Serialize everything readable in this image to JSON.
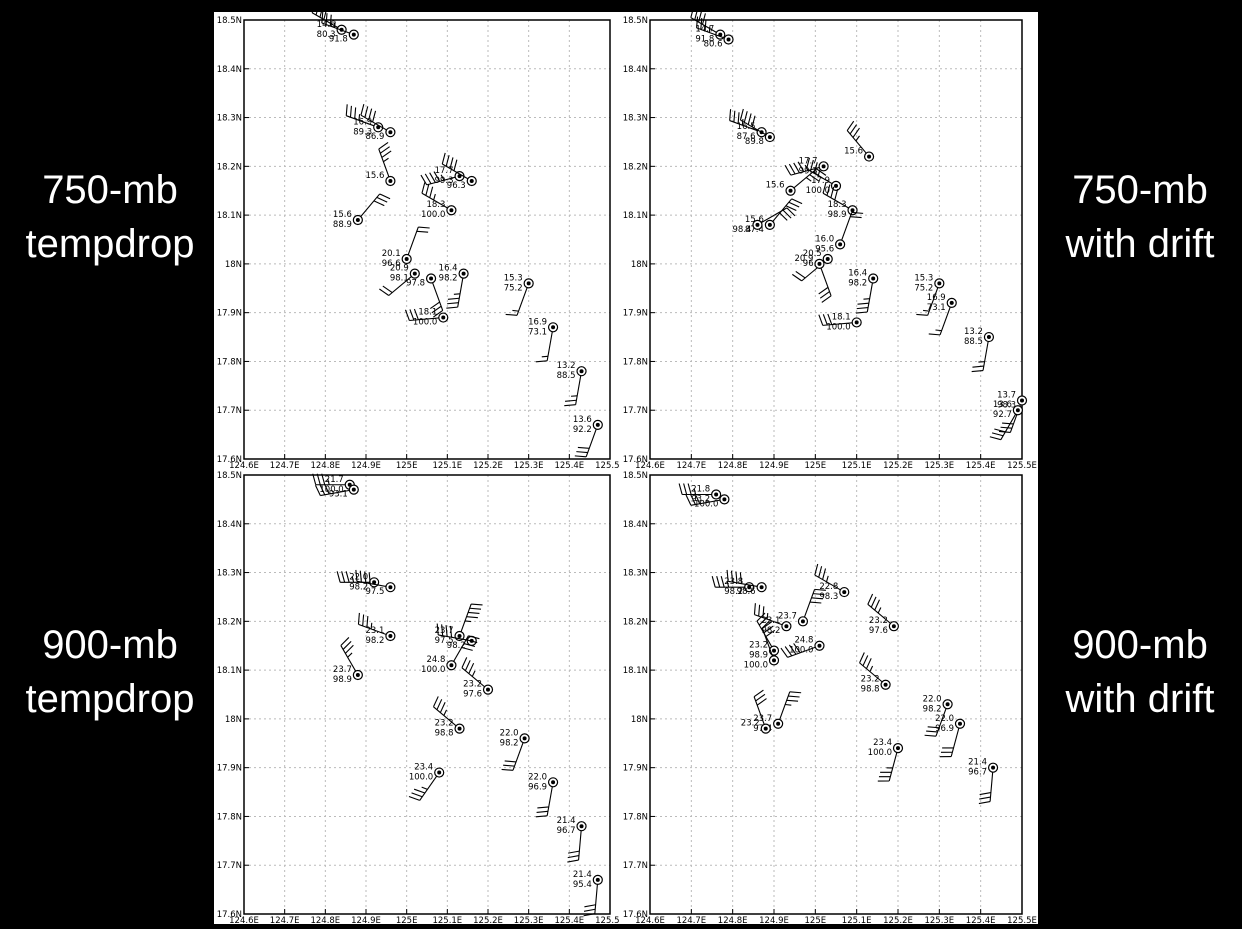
{
  "side_labels": {
    "top_left": [
      "750-mb",
      "tempdrop"
    ],
    "top_right": [
      "750-mb",
      "with drift"
    ],
    "bottom_left": [
      "900-mb",
      "tempdrop"
    ],
    "bottom_right": [
      "900-mb",
      "with drift"
    ]
  },
  "colors": {
    "background": "#000000",
    "panel": "#ffffff",
    "ink": "#000000",
    "grid": "#bbbbbb"
  },
  "chart_data": [
    {
      "type": "scatter",
      "title": "",
      "xlim": [
        124.6,
        125.5
      ],
      "ylim": [
        17.6,
        18.5
      ],
      "x_ticks": [
        "124.6E",
        "124.7E",
        "124.8E",
        "124.9E",
        "125E",
        "125.1E",
        "125.2E",
        "125.3E",
        "125.4E",
        "125.5E"
      ],
      "y_ticks": [
        "17.6N",
        "17.7N",
        "17.8N",
        "17.9N",
        "18N",
        "18.1N",
        "18.2N",
        "18.3N",
        "18.4N",
        "18.5N"
      ],
      "grid": true,
      "stations": [
        {
          "lon": 124.84,
          "lat": 18.48,
          "t": "14.6",
          "rh": "80.3",
          "wd": 300,
          "ws": 40
        },
        {
          "lon": 124.87,
          "lat": 18.47,
          "t": "",
          "rh": "91.8",
          "wd": 290,
          "ws": 35
        },
        {
          "lon": 124.93,
          "lat": 18.28,
          "t": "16.9",
          "rh": "89.3",
          "wd": 290,
          "ws": 35
        },
        {
          "lon": 124.96,
          "lat": 18.27,
          "t": "",
          "rh": "86.9",
          "wd": 300,
          "ws": 40
        },
        {
          "lon": 125.13,
          "lat": 18.18,
          "t": "17.7",
          "rh": "99.3",
          "wd": 255,
          "ws": 45
        },
        {
          "lon": 125.16,
          "lat": 18.17,
          "t": "",
          "rh": "96.3",
          "wd": 300,
          "ws": 40
        },
        {
          "lon": 124.96,
          "lat": 18.17,
          "t": "15.6",
          "rh": "",
          "wd": 340,
          "ws": 35
        },
        {
          "lon": 125.11,
          "lat": 18.11,
          "t": "18.3",
          "rh": "100.0",
          "wd": 300,
          "ws": 35
        },
        {
          "lon": 124.88,
          "lat": 18.09,
          "t": "15.6",
          "rh": "88.9",
          "wd": 40,
          "ws": 30
        },
        {
          "lon": 125.0,
          "lat": 18.01,
          "t": "20.1",
          "rh": "96.6",
          "wd": 20,
          "ws": 20
        },
        {
          "lon": 125.02,
          "lat": 17.98,
          "t": "20.9",
          "rh": "98.1",
          "wd": 230,
          "ws": 20
        },
        {
          "lon": 125.06,
          "lat": 17.97,
          "t": "",
          "rh": "97.8",
          "wd": 160,
          "ws": 30
        },
        {
          "lon": 125.14,
          "lat": 17.98,
          "t": "16.4",
          "rh": "98.2",
          "wd": 190,
          "ws": 35
        },
        {
          "lon": 125.09,
          "lat": 17.89,
          "t": "18.1",
          "rh": "100.0",
          "wd": 265,
          "ws": 30
        },
        {
          "lon": 125.3,
          "lat": 17.96,
          "t": "15.3",
          "rh": "75.2",
          "wd": 200,
          "ws": 15
        },
        {
          "lon": 125.36,
          "lat": 17.87,
          "t": "16.9",
          "rh": "73.1",
          "wd": 190,
          "ws": 15
        },
        {
          "lon": 125.43,
          "lat": 17.78,
          "t": "13.2",
          "rh": "88.5",
          "wd": 190,
          "ws": 25
        },
        {
          "lon": 125.47,
          "lat": 17.67,
          "t": "13.6",
          "rh": "92.2",
          "wd": 200,
          "ws": 30
        }
      ]
    },
    {
      "type": "scatter",
      "title": "",
      "xlim": [
        124.6,
        125.5
      ],
      "ylim": [
        17.6,
        18.5
      ],
      "x_ticks": [
        "124.6E",
        "124.7E",
        "124.8E",
        "124.9E",
        "125E",
        "125.1E",
        "125.2E",
        "125.3E",
        "125.4E",
        "125.5E"
      ],
      "y_ticks": [
        "17.6N",
        "17.7N",
        "17.8N",
        "17.9N",
        "18N",
        "18.1N",
        "18.2N",
        "18.3N",
        "18.4N",
        "18.5N"
      ],
      "grid": true,
      "stations": [
        {
          "lon": 124.77,
          "lat": 18.47,
          "t": "14.7",
          "rh": "91.8",
          "wd": 300,
          "ws": 40
        },
        {
          "lon": 124.79,
          "lat": 18.46,
          "t": "",
          "rh": "80.6",
          "wd": 290,
          "ws": 35
        },
        {
          "lon": 124.87,
          "lat": 18.27,
          "t": "16.5",
          "rh": "87.6",
          "wd": 290,
          "ws": 35
        },
        {
          "lon": 124.89,
          "lat": 18.26,
          "t": "",
          "rh": "89.8",
          "wd": 300,
          "ws": 40
        },
        {
          "lon": 125.13,
          "lat": 18.22,
          "t": "15.6",
          "rh": "",
          "wd": 320,
          "ws": 35
        },
        {
          "lon": 125.02,
          "lat": 18.2,
          "t": "17.7",
          "rh": "99.3",
          "wd": 255,
          "ws": 45
        },
        {
          "lon": 125.05,
          "lat": 18.16,
          "t": "17.9",
          "rh": "100.0",
          "wd": 300,
          "ws": 35
        },
        {
          "lon": 124.94,
          "lat": 18.15,
          "t": "15.6",
          "rh": "",
          "wd": 50,
          "ws": 35
        },
        {
          "lon": 125.09,
          "lat": 18.11,
          "t": "18.3",
          "rh": "98.9",
          "wd": 300,
          "ws": 40
        },
        {
          "lon": 124.89,
          "lat": 18.08,
          "t": "15.6",
          "rh": "87.4",
          "wd": 40,
          "ws": 30
        },
        {
          "lon": 124.86,
          "lat": 18.08,
          "t": "",
          "rh": "98.4",
          "wd": 60,
          "ws": 30
        },
        {
          "lon": 125.06,
          "lat": 18.04,
          "t": "16.0",
          "rh": "95.6",
          "wd": 20,
          "ws": 20
        },
        {
          "lon": 125.03,
          "lat": 18.01,
          "t": "20.5",
          "rh": "96.6",
          "wd": 230,
          "ws": 20
        },
        {
          "lon": 125.01,
          "lat": 18.0,
          "t": "20.9",
          "rh": "",
          "wd": 160,
          "ws": 30
        },
        {
          "lon": 125.14,
          "lat": 17.97,
          "t": "16.4",
          "rh": "98.2",
          "wd": 190,
          "ws": 35
        },
        {
          "lon": 125.1,
          "lat": 17.88,
          "t": "18.1",
          "rh": "100.0",
          "wd": 265,
          "ws": 30
        },
        {
          "lon": 125.3,
          "lat": 17.96,
          "t": "15.3",
          "rh": "75.2",
          "wd": 200,
          "ws": 15
        },
        {
          "lon": 125.33,
          "lat": 17.92,
          "t": "16.9",
          "rh": "73.1",
          "wd": 200,
          "ws": 15
        },
        {
          "lon": 125.42,
          "lat": 17.85,
          "t": "13.2",
          "rh": "88.5",
          "wd": 190,
          "ws": 25
        },
        {
          "lon": 125.5,
          "lat": 17.72,
          "t": "13.7",
          "rh": "98.3",
          "wd": 200,
          "ws": 30
        },
        {
          "lon": 125.49,
          "lat": 17.7,
          "t": "13.6",
          "rh": "92.7",
          "wd": 210,
          "ws": 30
        }
      ]
    },
    {
      "type": "scatter",
      "title": "",
      "xlim": [
        124.6,
        125.5
      ],
      "ylim": [
        17.6,
        18.5
      ],
      "x_ticks": [
        "124.6E",
        "124.7E",
        "124.8E",
        "124.9E",
        "125E",
        "125.1E",
        "125.2E",
        "125.3E",
        "125.4E",
        "125.5E"
      ],
      "y_ticks": [
        "17.6N",
        "17.7N",
        "17.8N",
        "17.9N",
        "18N",
        "18.1N",
        "18.2N",
        "18.3N",
        "18.4N",
        "18.5N"
      ],
      "grid": true,
      "stations": [
        {
          "lon": 124.86,
          "lat": 18.48,
          "t": "21.7",
          "rh": "100.0",
          "wd": 270,
          "ws": 35
        },
        {
          "lon": 124.87,
          "lat": 18.47,
          "t": "",
          "rh": "93.1",
          "wd": 260,
          "ws": 30
        },
        {
          "lon": 124.92,
          "lat": 18.28,
          "t": "22.0",
          "rh": "98.2",
          "wd": 270,
          "ws": 35
        },
        {
          "lon": 124.96,
          "lat": 18.27,
          "t": "",
          "rh": "97.5",
          "wd": 280,
          "ws": 40
        },
        {
          "lon": 124.96,
          "lat": 18.17,
          "t": "23.1",
          "rh": "98.2",
          "wd": 290,
          "ws": 35
        },
        {
          "lon": 125.13,
          "lat": 18.17,
          "t": "23.7",
          "rh": "97.5",
          "wd": 20,
          "ws": 45
        },
        {
          "lon": 125.16,
          "lat": 18.16,
          "t": "",
          "rh": "98.2",
          "wd": 280,
          "ws": 40
        },
        {
          "lon": 125.11,
          "lat": 18.11,
          "t": "24.8",
          "rh": "100.0",
          "wd": 30,
          "ws": 40
        },
        {
          "lon": 124.88,
          "lat": 18.09,
          "t": "23.7",
          "rh": "98.9",
          "wd": 330,
          "ws": 35
        },
        {
          "lon": 125.2,
          "lat": 18.06,
          "t": "23.2",
          "rh": "97.6",
          "wd": 310,
          "ws": 35
        },
        {
          "lon": 125.13,
          "lat": 17.98,
          "t": "23.2",
          "rh": "98.8",
          "wd": 310,
          "ws": 35
        },
        {
          "lon": 125.08,
          "lat": 17.89,
          "t": "23.4",
          "rh": "100.0",
          "wd": 215,
          "ws": 35
        },
        {
          "lon": 125.29,
          "lat": 17.96,
          "t": "22.0",
          "rh": "98.2",
          "wd": 200,
          "ws": 30
        },
        {
          "lon": 125.36,
          "lat": 17.87,
          "t": "22.0",
          "rh": "96.9",
          "wd": 190,
          "ws": 30
        },
        {
          "lon": 125.43,
          "lat": 17.78,
          "t": "21.4",
          "rh": "96.7",
          "wd": 185,
          "ws": 30
        },
        {
          "lon": 125.47,
          "lat": 17.67,
          "t": "21.4",
          "rh": "95.4",
          "wd": 185,
          "ws": 30
        }
      ]
    },
    {
      "type": "scatter",
      "title": "",
      "xlim": [
        124.6,
        125.5
      ],
      "ylim": [
        17.6,
        18.5
      ],
      "x_ticks": [
        "124.6E",
        "124.7E",
        "124.8E",
        "124.9E",
        "125E",
        "125.1E",
        "125.2E",
        "125.3E",
        "125.4E",
        "125.5E"
      ],
      "y_ticks": [
        "17.6N",
        "17.7N",
        "17.8N",
        "17.9N",
        "18N",
        "18.1N",
        "18.2N",
        "18.3N",
        "18.4N",
        "18.5N"
      ],
      "grid": true,
      "stations": [
        {
          "lon": 124.76,
          "lat": 18.46,
          "t": "21.8",
          "rh": "93.2",
          "wd": 270,
          "ws": 35
        },
        {
          "lon": 124.78,
          "lat": 18.45,
          "t": "",
          "rh": "100.0",
          "wd": 260,
          "ws": 30
        },
        {
          "lon": 124.84,
          "lat": 18.27,
          "t": "23.8",
          "rh": "98.2",
          "wd": 270,
          "ws": 35
        },
        {
          "lon": 124.87,
          "lat": 18.27,
          "t": "",
          "rh": "98.6",
          "wd": 280,
          "ws": 40
        },
        {
          "lon": 125.07,
          "lat": 18.26,
          "t": "22.8",
          "rh": "98.3",
          "wd": 300,
          "ws": 35
        },
        {
          "lon": 124.93,
          "lat": 18.19,
          "t": "23.1",
          "rh": "98.2",
          "wd": 290,
          "ws": 35
        },
        {
          "lon": 124.97,
          "lat": 18.2,
          "t": "23.7",
          "rh": "",
          "wd": 20,
          "ws": 40
        },
        {
          "lon": 125.19,
          "lat": 18.19,
          "t": "23.2",
          "rh": "97.6",
          "wd": 310,
          "ws": 35
        },
        {
          "lon": 124.9,
          "lat": 18.14,
          "t": "23.2",
          "rh": "98.9",
          "wd": 330,
          "ws": 30
        },
        {
          "lon": 124.9,
          "lat": 18.12,
          "t": "",
          "rh": "100.0",
          "wd": 340,
          "ws": 30
        },
        {
          "lon": 125.01,
          "lat": 18.15,
          "t": "24.8",
          "rh": "100.0",
          "wd": 250,
          "ws": 40
        },
        {
          "lon": 125.17,
          "lat": 18.07,
          "t": "23.2",
          "rh": "98.8",
          "wd": 310,
          "ws": 35
        },
        {
          "lon": 124.91,
          "lat": 17.99,
          "t": "23.7",
          "rh": "97.4",
          "wd": 20,
          "ws": 35
        },
        {
          "lon": 124.88,
          "lat": 17.98,
          "t": "23.2",
          "rh": "",
          "wd": 340,
          "ws": 30
        },
        {
          "lon": 125.2,
          "lat": 17.94,
          "t": "23.4",
          "rh": "100.0",
          "wd": 195,
          "ws": 35
        },
        {
          "lon": 125.32,
          "lat": 18.03,
          "t": "22.0",
          "rh": "98.2",
          "wd": 200,
          "ws": 30
        },
        {
          "lon": 125.35,
          "lat": 17.99,
          "t": "22.0",
          "rh": "96.9",
          "wd": 195,
          "ws": 30
        },
        {
          "lon": 125.43,
          "lat": 17.9,
          "t": "21.4",
          "rh": "96.7",
          "wd": 185,
          "ws": 30
        }
      ]
    }
  ]
}
